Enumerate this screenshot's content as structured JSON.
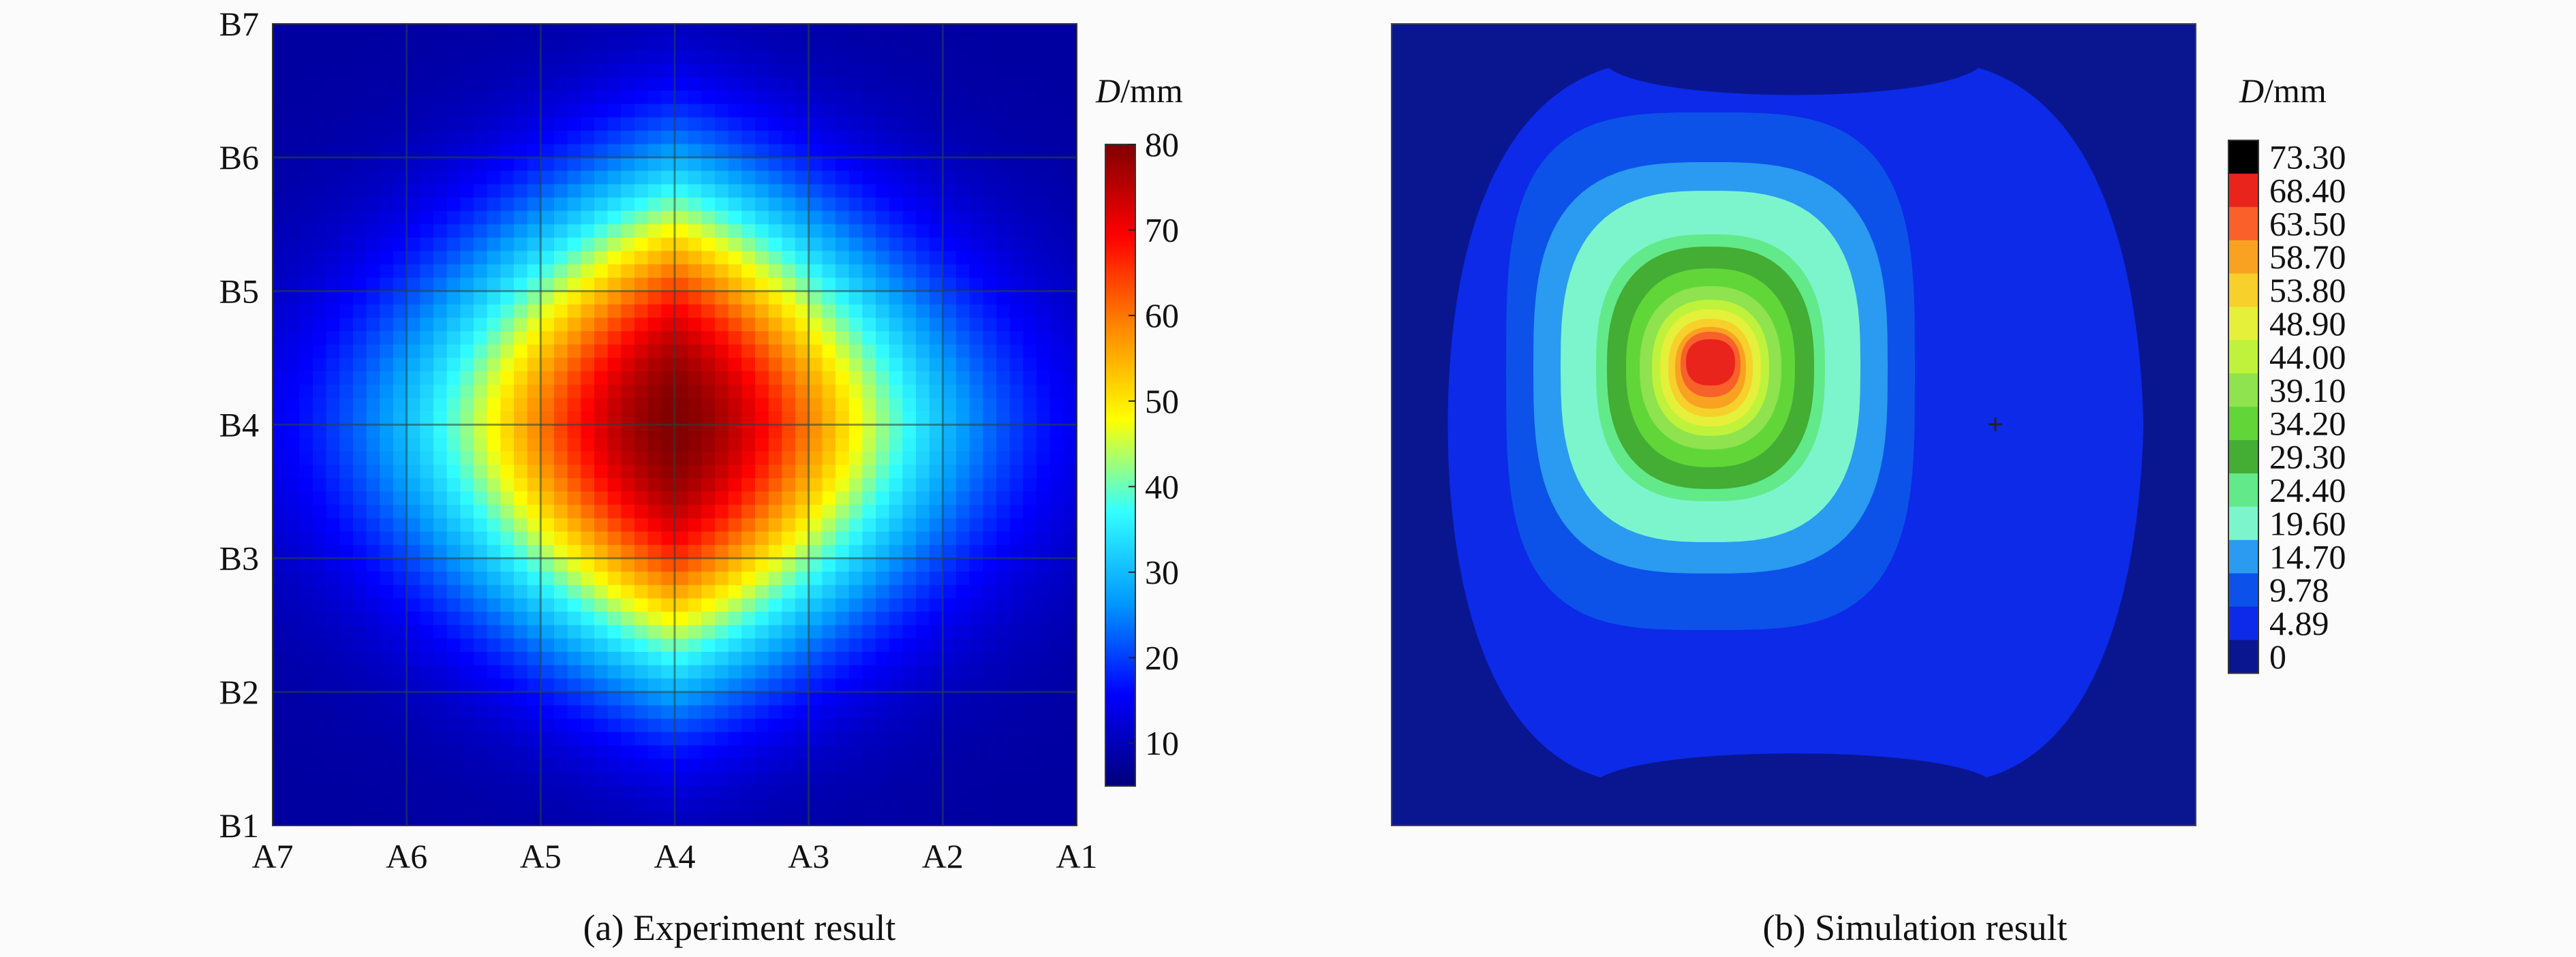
{
  "chart_data": [
    {
      "type": "heatmap",
      "caption": "(a) Experiment result",
      "x_ticks": [
        "A7",
        "A6",
        "A5",
        "A4",
        "A3",
        "A2",
        "A1"
      ],
      "y_ticks": [
        "B1",
        "B2",
        "B3",
        "B4",
        "B5",
        "B6",
        "B7"
      ],
      "colorbar": {
        "title_var": "D",
        "title_unit": "/mm",
        "range": [
          5,
          80
        ],
        "ticks": [
          "80",
          "70",
          "60",
          "50",
          "40",
          "30",
          "20",
          "10"
        ],
        "tick_values": [
          80,
          70,
          60,
          50,
          40,
          30,
          20,
          10
        ],
        "colors": [
          "#00007a",
          "#0000ff",
          "#0099ff",
          "#33ffff",
          "#ffff00",
          "#ff8800",
          "#ff0000",
          "#800000"
        ]
      },
      "field": {
        "peak_value": 80,
        "peak_at": [
          "A4",
          "B4"
        ],
        "edge_value": 8
      },
      "grid": true
    },
    {
      "type": "heatmap",
      "caption": "(b) Simulation result",
      "colorbar": {
        "title_var": "D",
        "title_unit": "/mm",
        "levels": [
          "73.30",
          "68.40",
          "63.50",
          "58.70",
          "53.80",
          "48.90",
          "44.00",
          "39.10",
          "34.20",
          "29.30",
          "24.40",
          "19.60",
          "14.70",
          "9.78",
          "4.89",
          "0"
        ],
        "colors": [
          "#000000",
          "#e8241c",
          "#f8612a",
          "#f9a222",
          "#f7d02b",
          "#e5f03a",
          "#bff23b",
          "#8ee34f",
          "#61d639",
          "#43ad34",
          "#62e98a",
          "#7cf5cc",
          "#2a9bf0",
          "#0c52e8",
          "#0c2ae8",
          "#0a1690"
        ]
      },
      "contours": [
        {
          "level": "0",
          "color": "#0a1690"
        },
        {
          "level": "4.89",
          "color": "#0c2ae8"
        },
        {
          "level": "9.78",
          "color": "#0c52e8"
        },
        {
          "level": "14.70",
          "color": "#2a9bf0"
        },
        {
          "level": "19.60",
          "color": "#7cf5cc"
        },
        {
          "level": "24.40",
          "color": "#62e98a"
        },
        {
          "level": "29.30",
          "color": "#43ad34"
        },
        {
          "level": "34.20",
          "color": "#61d639"
        },
        {
          "level": "39.10",
          "color": "#8ee34f"
        },
        {
          "level": "44.00",
          "color": "#bff23b"
        },
        {
          "level": "48.90",
          "color": "#e5f03a"
        },
        {
          "level": "53.80",
          "color": "#f7d02b"
        },
        {
          "level": "58.70",
          "color": "#f9a222"
        },
        {
          "level": "63.50",
          "color": "#f8612a"
        },
        {
          "level": "68.40",
          "color": "#e8241c"
        }
      ]
    }
  ]
}
